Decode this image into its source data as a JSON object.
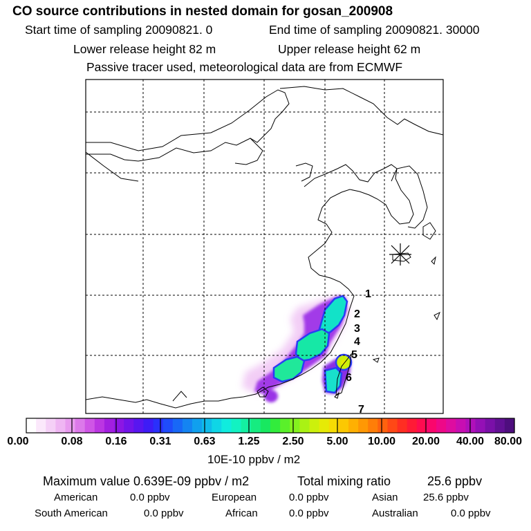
{
  "header": {
    "title": "CO  source contributions in nested domain for gosan_200908",
    "line2_a": "Start time of sampling 20090821.     0",
    "line2_b": "End time of sampling 20090821. 30000",
    "line3_a": "Lower release height   82 m",
    "line3_b": "Upper release height   62 m",
    "line4": "Passive tracer used, meteorological data are from ECMWF"
  },
  "chart_data": {
    "type": "heatmap",
    "title": "CO  source contributions in nested domain for gosan_200908",
    "colorbar": {
      "tick_labels": [
        "0.00",
        "0.08",
        "0.16",
        "0.31",
        "0.63",
        "1.25",
        "2.50",
        "5.00",
        "10.00",
        "20.00",
        "40.00",
        "80.00"
      ],
      "unit_label": "10E-10 ppbv / m2",
      "colors": [
        "#ffffff",
        "#fbe8fb",
        "#f5d0f7",
        "#efb6f3",
        "#e89bef",
        "#dc79ea",
        "#cf56e6",
        "#bb36e2",
        "#a21fe0",
        "#8c16e4",
        "#7214ea",
        "#5816f0",
        "#3e1cf6",
        "#2a30fb",
        "#1f4cfb",
        "#1868f7",
        "#1484f2",
        "#10a0ee",
        "#0fbcea",
        "#0fd6e6",
        "#10ecde",
        "#12f2c2",
        "#14f0a2",
        "#16ec80",
        "#18e860",
        "#32ec3c",
        "#5af02a",
        "#84f21e",
        "#aaf214",
        "#ccf00c",
        "#e6ea06",
        "#f6dc04",
        "#fcc802",
        "#ffb002",
        "#ff9804",
        "#ff7e08",
        "#ff620e",
        "#ff4816",
        "#ff2e22",
        "#ff1a36",
        "#ff0c50",
        "#fa066c",
        "#ee0888",
        "#de0ca0",
        "#c80eb2",
        "#b010ba",
        "#9410b6",
        "#7a10a8",
        "#621094",
        "#4e0e7e"
      ]
    },
    "trajectory_points": [
      "1",
      "2",
      "3",
      "4",
      "5",
      "6",
      "7"
    ],
    "receptor_marker": "asterisk"
  },
  "stats": {
    "max_label": "Maximum value  0.639E-09 ppbv / m2",
    "total_label": "Total mixing ratio",
    "total_value": "25.6 ppbv",
    "regions": [
      {
        "name": "American",
        "value": "0.0 ppbv"
      },
      {
        "name": "European",
        "value": "0.0 ppbv"
      },
      {
        "name": "Asian",
        "value": "25.6 ppbv"
      },
      {
        "name": "South American",
        "value": "0.0 ppbv"
      },
      {
        "name": "African",
        "value": "0.0 ppbv"
      },
      {
        "name": "Australian",
        "value": "0.0 ppbv"
      }
    ]
  }
}
